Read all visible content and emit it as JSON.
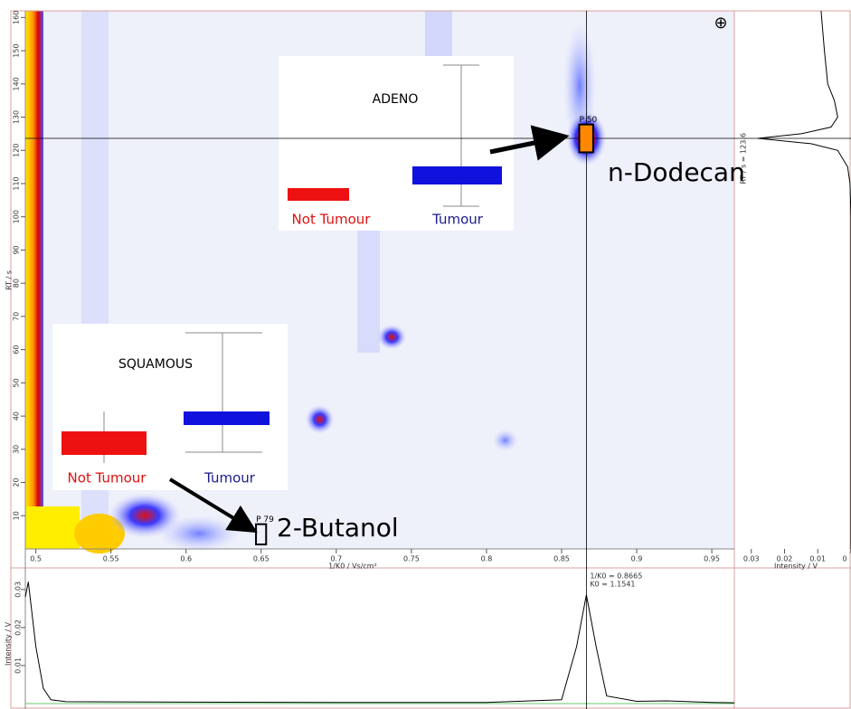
{
  "chart_data": [
    {
      "type": "heatmap",
      "xlabel": "1/K0 / Vs/cm²",
      "ylabel": "RT / s",
      "xlim": [
        0.493,
        0.965
      ],
      "ylim": [
        0,
        162
      ],
      "xticks": [
        0.5,
        0.55,
        0.6,
        0.65,
        0.7,
        0.75,
        0.8,
        0.85,
        0.9,
        0.95
      ],
      "yticks": [
        10,
        20,
        30,
        40,
        50,
        60,
        70,
        80,
        90,
        100,
        110,
        120,
        130,
        140,
        150,
        160
      ],
      "spots": {
        "x": [
          0.8665,
          0.737,
          0.689,
          0.8125
        ],
        "y": [
          123.6,
          63.8,
          39,
          32.7
        ]
      },
      "cursor": {
        "x": 0.8665,
        "y": 123.6,
        "x_label": "1/K0 = 0.8665",
        "k0_label": "K0 = 1.1541",
        "y_label": "RT / s = 123.6"
      },
      "annotations": [
        {
          "text": "P 50",
          "x": 0.8665,
          "y": 123.6,
          "compound": "n-Dodecan"
        },
        {
          "text": "P 79",
          "x": 0.65,
          "y": 4.4,
          "compound": "2-Butanol"
        }
      ]
    },
    {
      "type": "profile",
      "xlabel": "Intensity / V",
      "xlim": [
        0.0351,
        0
      ],
      "xticks": [
        0.03,
        0.02,
        0.01,
        0
      ],
      "ylim": [
        0,
        162
      ],
      "y": [
        162,
        150,
        140,
        135,
        130,
        127,
        125,
        123.6,
        122,
        120,
        115,
        110,
        100,
        50,
        0
      ],
      "values": [
        0.009,
        0.008,
        0.007,
        0.005,
        0.004,
        0.006,
        0.015,
        0.028,
        0.012,
        0.004,
        0.001,
        0.0003,
        0,
        0,
        0
      ],
      "color": "#000000"
    },
    {
      "type": "line",
      "ylabel": "Intensity / V",
      "xlim": [
        0.493,
        0.965
      ],
      "ylim": [
        0,
        0.0333
      ],
      "yticks": [
        0.01,
        0.02,
        0.03
      ],
      "x": [
        0.493,
        0.495,
        0.5,
        0.505,
        0.51,
        0.52,
        0.6,
        0.7,
        0.8,
        0.85,
        0.86,
        0.8665,
        0.873,
        0.88,
        0.9,
        0.92,
        0.95,
        0.965
      ],
      "values": [
        0.028,
        0.032,
        0.015,
        0.004,
        0.001,
        0.0005,
        0.0004,
        0.0003,
        0.0003,
        0.001,
        0.015,
        0.0286,
        0.015,
        0.002,
        0.0006,
        0.0007,
        0.0003,
        0.0002
      ],
      "color": "#000000"
    }
  ],
  "insets": [
    {
      "title": "ADENO",
      "groups": [
        "Not Tumour",
        "Tumour"
      ]
    },
    {
      "title": "SQUAMOUS",
      "groups": [
        "Not Tumour",
        "Tumour"
      ]
    }
  ]
}
